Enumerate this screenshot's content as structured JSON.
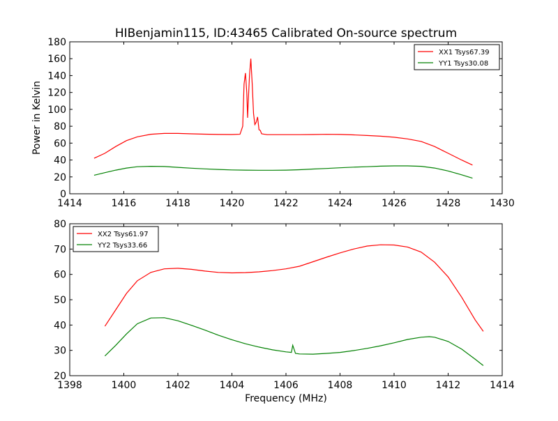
{
  "chart_data": [
    {
      "type": "line",
      "title": "HIBenjamin115, ID:43465 Calibrated On-source spectrum",
      "xlabel": "",
      "ylabel": "Power in Kelvin",
      "xlim": [
        1414,
        1430
      ],
      "ylim": [
        0,
        180
      ],
      "xticks": [
        "1414",
        "1416",
        "1418",
        "1420",
        "1422",
        "1424",
        "1426",
        "1428",
        "1430"
      ],
      "yticks": [
        "0",
        "20",
        "40",
        "60",
        "80",
        "100",
        "120",
        "140",
        "160",
        "180"
      ],
      "grid": false,
      "legend_position": "top-right",
      "series": [
        {
          "name": "XX1 Tsys67.39",
          "color": "#ff0000",
          "points": [
            [
              1414.9,
              42
            ],
            [
              1415.3,
              48
            ],
            [
              1415.7,
              56
            ],
            [
              1416.1,
              63
            ],
            [
              1416.5,
              67.5
            ],
            [
              1417,
              70.5
            ],
            [
              1417.5,
              71.5
            ],
            [
              1418,
              71.5
            ],
            [
              1418.5,
              71
            ],
            [
              1419,
              70.6
            ],
            [
              1419.5,
              70.3
            ],
            [
              1420,
              70.2
            ],
            [
              1420.3,
              70.5
            ],
            [
              1420.4,
              80
            ],
            [
              1420.45,
              130
            ],
            [
              1420.5,
              143
            ],
            [
              1420.55,
              120
            ],
            [
              1420.58,
              90
            ],
            [
              1420.6,
              105
            ],
            [
              1420.65,
              140
            ],
            [
              1420.7,
              160
            ],
            [
              1420.75,
              130
            ],
            [
              1420.8,
              95
            ],
            [
              1420.85,
              82
            ],
            [
              1420.9,
              85
            ],
            [
              1420.95,
              91
            ],
            [
              1421,
              76
            ],
            [
              1421.05,
              75
            ],
            [
              1421.1,
              71
            ],
            [
              1421.3,
              70
            ],
            [
              1421.8,
              70
            ],
            [
              1422.5,
              70
            ],
            [
              1423,
              70.2
            ],
            [
              1423.5,
              70.4
            ],
            [
              1424,
              70.3
            ],
            [
              1424.5,
              69.8
            ],
            [
              1425,
              69
            ],
            [
              1425.5,
              68.2
            ],
            [
              1426,
              67
            ],
            [
              1426.5,
              65
            ],
            [
              1427,
              62
            ],
            [
              1427.5,
              56
            ],
            [
              1428,
              48
            ],
            [
              1428.5,
              40
            ],
            [
              1428.9,
              34
            ]
          ]
        },
        {
          "name": "YY1 Tsys30.08",
          "color": "#008000",
          "points": [
            [
              1414.9,
              22
            ],
            [
              1415.3,
              25
            ],
            [
              1415.7,
              28
            ],
            [
              1416.1,
              30.5
            ],
            [
              1416.5,
              32
            ],
            [
              1417,
              32.5
            ],
            [
              1417.5,
              32.3
            ],
            [
              1418,
              31.3
            ],
            [
              1418.5,
              30.3
            ],
            [
              1419,
              29.5
            ],
            [
              1419.5,
              28.8
            ],
            [
              1420,
              28.2
            ],
            [
              1420.5,
              28
            ],
            [
              1421,
              27.8
            ],
            [
              1421.5,
              27.8
            ],
            [
              1422,
              28
            ],
            [
              1422.5,
              28.5
            ],
            [
              1423,
              29.3
            ],
            [
              1423.5,
              30
            ],
            [
              1424,
              30.8
            ],
            [
              1424.5,
              31.5
            ],
            [
              1425,
              32
            ],
            [
              1425.5,
              32.7
            ],
            [
              1426,
              33
            ],
            [
              1426.5,
              33
            ],
            [
              1427,
              32.5
            ],
            [
              1427.5,
              30.5
            ],
            [
              1428,
              27
            ],
            [
              1428.5,
              22.5
            ],
            [
              1428.9,
              18.5
            ]
          ]
        }
      ]
    },
    {
      "type": "line",
      "title": "",
      "xlabel": "Frequency (MHz)",
      "ylabel": "",
      "xlim": [
        1398,
        1414
      ],
      "ylim": [
        20,
        80
      ],
      "xticks": [
        "1398",
        "1400",
        "1402",
        "1404",
        "1406",
        "1408",
        "1410",
        "1412",
        "1414"
      ],
      "yticks": [
        "20",
        "30",
        "40",
        "50",
        "60",
        "70",
        "80"
      ],
      "grid": false,
      "legend_position": "top-left",
      "series": [
        {
          "name": "XX2 Tsys61.97",
          "color": "#ff0000",
          "points": [
            [
              1399.3,
              39.5
            ],
            [
              1399.7,
              46
            ],
            [
              1400.1,
              52.5
            ],
            [
              1400.5,
              57.5
            ],
            [
              1401,
              60.8
            ],
            [
              1401.5,
              62.2
            ],
            [
              1402,
              62.4
            ],
            [
              1402.5,
              62
            ],
            [
              1403,
              61.3
            ],
            [
              1403.5,
              60.8
            ],
            [
              1404,
              60.6
            ],
            [
              1404.5,
              60.7
            ],
            [
              1405,
              61
            ],
            [
              1405.5,
              61.5
            ],
            [
              1406,
              62.2
            ],
            [
              1406.5,
              63.2
            ],
            [
              1407,
              65
            ],
            [
              1407.5,
              66.8
            ],
            [
              1408,
              68.5
            ],
            [
              1408.5,
              70
            ],
            [
              1409,
              71.2
            ],
            [
              1409.5,
              71.7
            ],
            [
              1410,
              71.6
            ],
            [
              1410.5,
              70.8
            ],
            [
              1411,
              68.8
            ],
            [
              1411.5,
              64.8
            ],
            [
              1412,
              59
            ],
            [
              1412.5,
              51
            ],
            [
              1413,
              42
            ],
            [
              1413.3,
              37.5
            ]
          ]
        },
        {
          "name": "YY2 Tsys33.66",
          "color": "#008000",
          "points": [
            [
              1399.3,
              27.8
            ],
            [
              1399.7,
              32
            ],
            [
              1400.1,
              36.5
            ],
            [
              1400.5,
              40.5
            ],
            [
              1401,
              42.8
            ],
            [
              1401.5,
              42.9
            ],
            [
              1402,
              41.7
            ],
            [
              1402.5,
              39.9
            ],
            [
              1403,
              38
            ],
            [
              1403.5,
              36
            ],
            [
              1404,
              34.2
            ],
            [
              1404.5,
              32.6
            ],
            [
              1405,
              31.3
            ],
            [
              1405.5,
              30.2
            ],
            [
              1406,
              29.4
            ],
            [
              1406.2,
              29.2
            ],
            [
              1406.25,
              32
            ],
            [
              1406.3,
              30.5
            ],
            [
              1406.35,
              28.8
            ],
            [
              1406.5,
              28.6
            ],
            [
              1407,
              28.5
            ],
            [
              1407.5,
              28.8
            ],
            [
              1408,
              29.2
            ],
            [
              1408.5,
              29.9
            ],
            [
              1409,
              30.8
            ],
            [
              1409.5,
              31.8
            ],
            [
              1410,
              33
            ],
            [
              1410.5,
              34.3
            ],
            [
              1411,
              35.2
            ],
            [
              1411.3,
              35.4
            ],
            [
              1411.5,
              35.2
            ],
            [
              1412,
              33.5
            ],
            [
              1412.5,
              30.5
            ],
            [
              1413,
              26.5
            ],
            [
              1413.3,
              24
            ]
          ]
        }
      ]
    }
  ]
}
